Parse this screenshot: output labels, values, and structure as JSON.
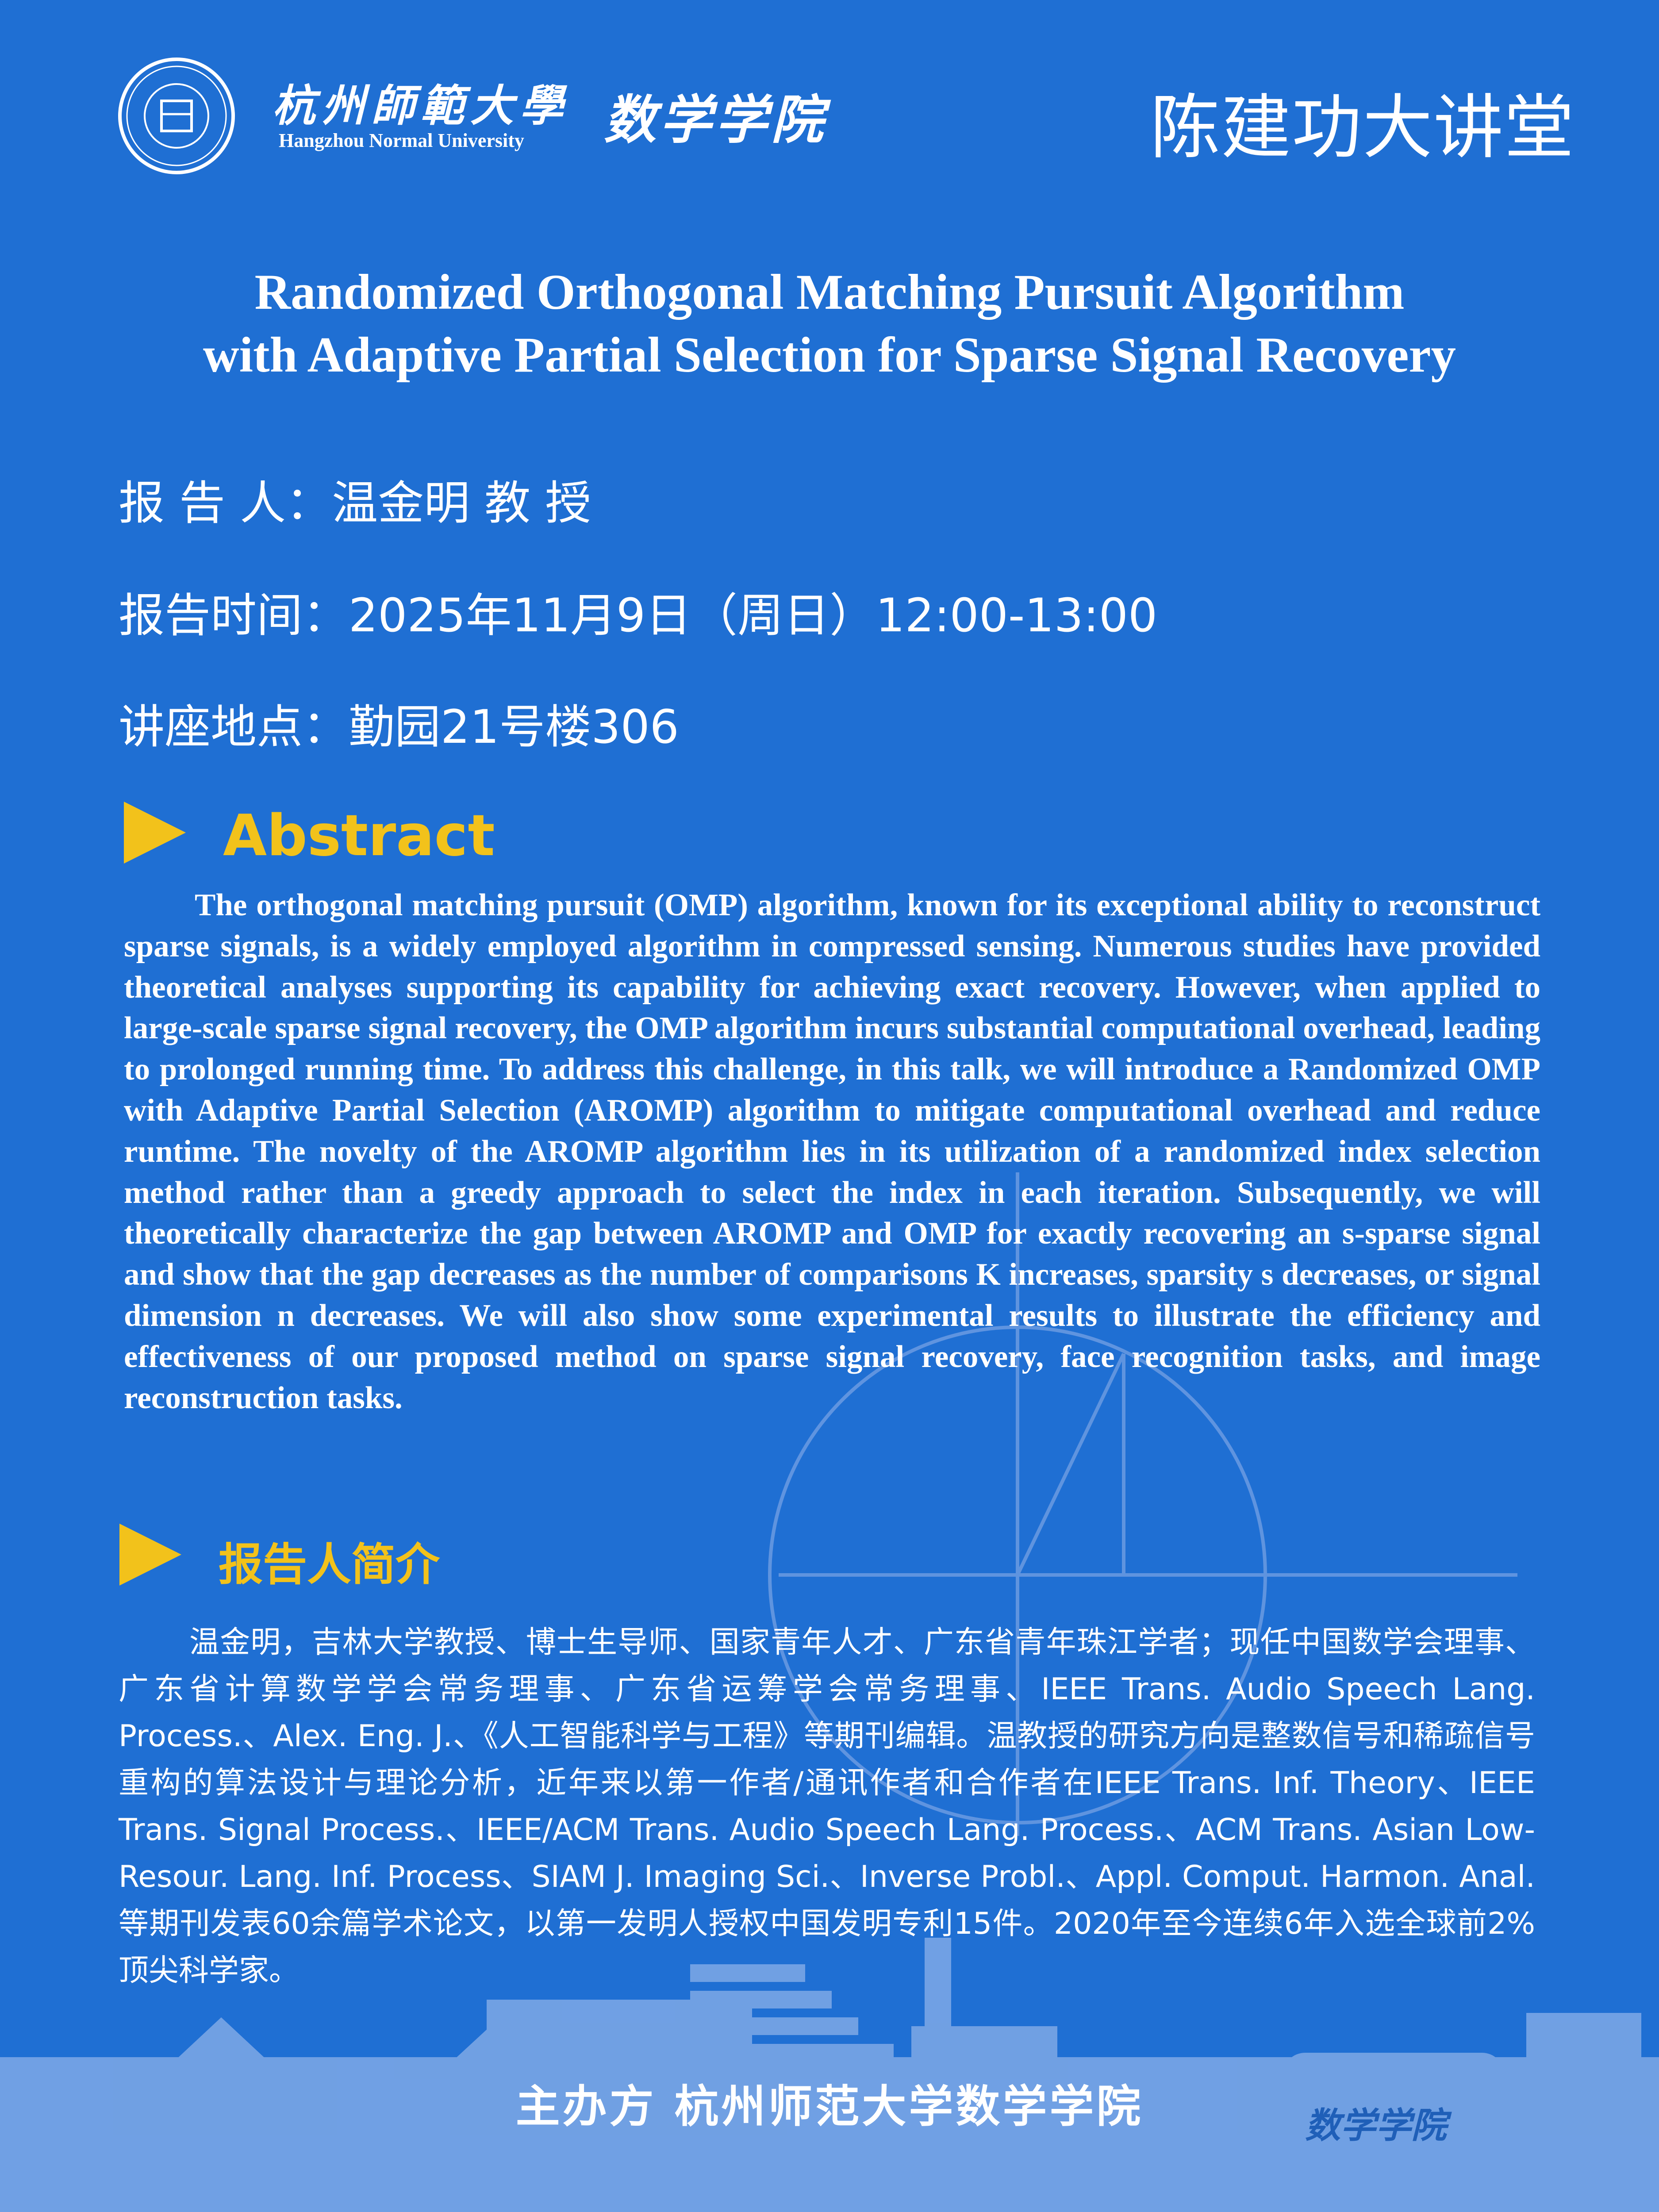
{
  "header": {
    "university_cn": "杭州師範大學",
    "university_en": "Hangzhou Normal University",
    "school": "数学学院",
    "series": "陈建功大讲堂",
    "logo_icon": "university-seal-icon"
  },
  "talk": {
    "title_line1": "Randomized Orthogonal Matching Pursuit Algorithm",
    "title_line2": "with Adaptive Partial Selection for Sparse Signal Recovery",
    "speaker": "报 告 人：温金明  教 授",
    "time": "报告时间：2025年11月9日（周日）12:00-13:00",
    "venue": "讲座地点：勤园21号楼306"
  },
  "abstract": {
    "heading": "Abstract",
    "text": "The orthogonal matching pursuit (OMP) algorithm, known for its exceptional ability to reconstruct sparse signals, is a widely employed algorithm in compressed sensing. Numerous studies have provided theoretical analyses supporting its capability for achieving exact recovery. However, when applied to large-scale sparse signal recovery, the OMP algorithm incurs substantial computational overhead, leading to prolonged running time. To address this challenge, in this talk, we will introduce a Randomized OMP with Adaptive Partial Selection (AROMP) algorithm to mitigate computational overhead and reduce runtime. The novelty of the AROMP algorithm lies in its utilization of a randomized index selection method rather than a greedy approach to select the index in each iteration. Subsequently, we will theoretically characterize the gap between AROMP and OMP for exactly recovering an s-sparse signal and show that the gap decreases as the number of comparisons K increases, sparsity s decreases, or signal dimension n decreases. We will also show some experimental results to illustrate the efficiency and effectiveness of our proposed method on sparse signal recovery, face recognition tasks, and image reconstruction tasks."
  },
  "bio": {
    "heading": "报告人简介",
    "text": "温金明，吉林大学教授、博士生导师、国家青年人才、广东省青年珠江学者；现任中国数学会理事、广东省计算数学学会常务理事、广东省运筹学会常务理事、IEEE Trans. Audio Speech Lang. Process.、Alex. Eng. J.、《人工智能科学与工程》等期刊编辑。温教授的研究方向是整数信号和稀疏信号重构的算法设计与理论分析，近年来以第一作者/通讯作者和合作者在IEEE Trans. Inf. Theory、IEEE Trans. Signal Process.、IEEE/ACM Trans. Audio Speech Lang. Process.、ACM Trans. Asian Low-Resour. Lang. Inf. Process、SIAM J. Imaging Sci.、Inverse Probl.、Appl. Comput. Harmon. Anal.等期刊发表60余篇学术论文，以第一发明人授权中国发明专利15件。2020年至今连续6年入选全球前2%顶尖科学家。"
  },
  "footer": {
    "host": "主办方   杭州师范大学数学学院",
    "watermark": "数学学院"
  },
  "colors": {
    "background": "#1f6fd3",
    "accent": "#f2c21b",
    "text": "#ffffff"
  }
}
